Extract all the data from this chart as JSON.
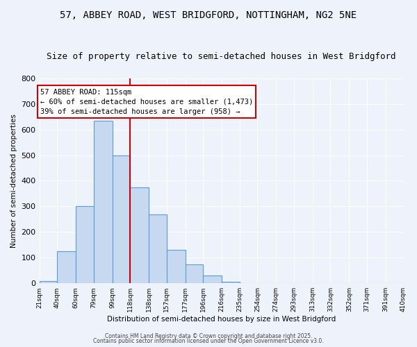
{
  "title1": "57, ABBEY ROAD, WEST BRIDGFORD, NOTTINGHAM, NG2 5NE",
  "title2": "Size of property relative to semi-detached houses in West Bridgford",
  "xlabel": "Distribution of semi-detached houses by size in West Bridgford",
  "ylabel": "Number of semi-detached properties",
  "bins": [
    21,
    40,
    60,
    79,
    99,
    118,
    138,
    157,
    177,
    196,
    216,
    235,
    254,
    274,
    293,
    313,
    332,
    352,
    371,
    391,
    410
  ],
  "heights": [
    10,
    125,
    300,
    635,
    500,
    375,
    270,
    130,
    75,
    30,
    5,
    0,
    0,
    0,
    0,
    0,
    0,
    0,
    0,
    0
  ],
  "bar_color": "#c6d9f0",
  "bar_edge_color": "#5b9bd5",
  "vline_x": 118,
  "vline_color": "#cc0000",
  "annotation_title": "57 ABBEY ROAD: 115sqm",
  "annotation_line1": "← 60% of semi-detached houses are smaller (1,473)",
  "annotation_line2": "39% of semi-detached houses are larger (958) →",
  "annotation_box_color": "#cc0000",
  "ylim": [
    0,
    800
  ],
  "yticks": [
    0,
    100,
    200,
    300,
    400,
    500,
    600,
    700,
    800
  ],
  "footer1": "Contains HM Land Registry data © Crown copyright and database right 2025.",
  "footer2": "Contains public sector information licensed under the Open Government Licence v3.0.",
  "bg_color": "#eef2fb",
  "title_fontsize": 10,
  "subtitle_fontsize": 9,
  "grid_color": "#ffffff"
}
